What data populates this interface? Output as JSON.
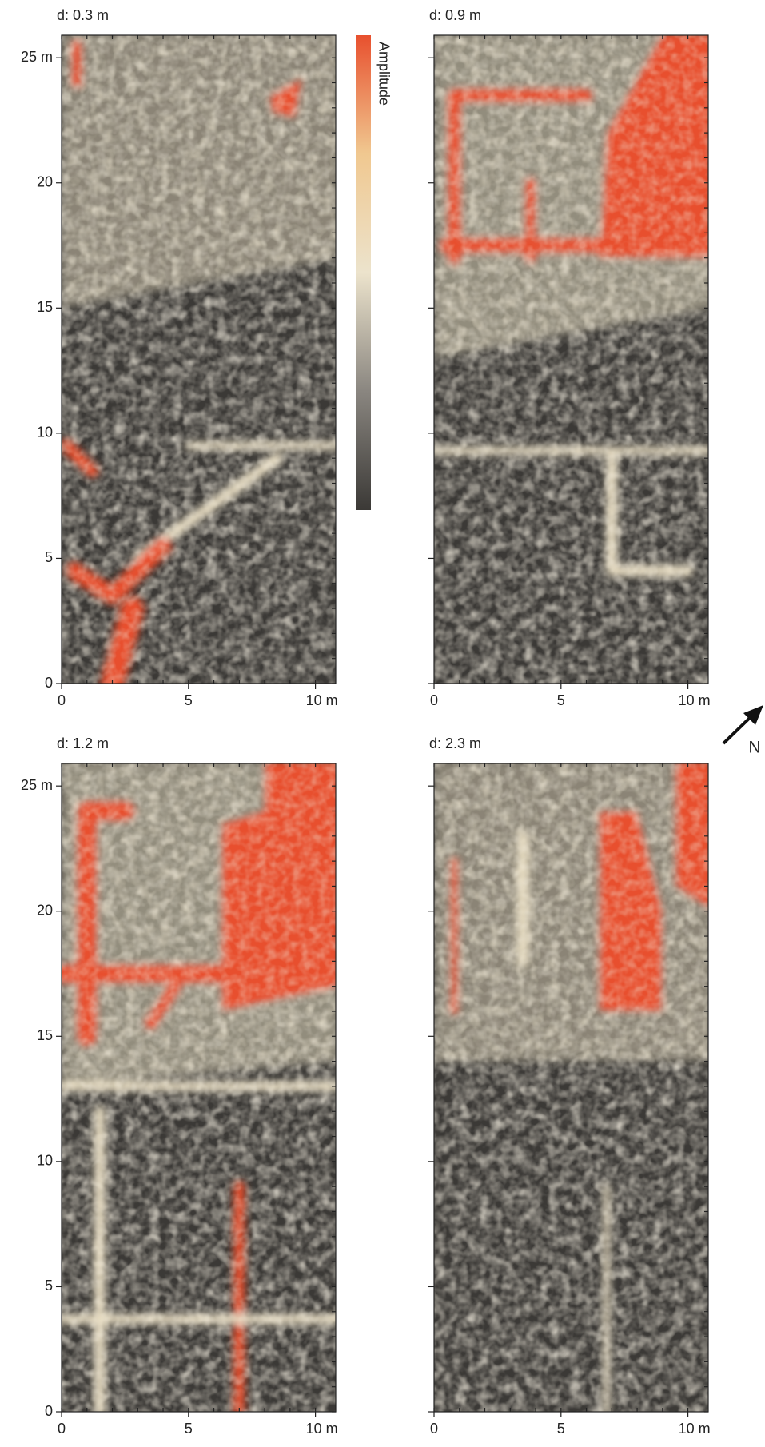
{
  "panels": [
    {
      "title": "d: 0.3 m",
      "show_y_labels": true
    },
    {
      "title": "d: 0.9 m",
      "show_y_labels": false
    },
    {
      "title": "d: 1.2 m",
      "show_y_labels": true
    },
    {
      "title": "d: 2.3 m",
      "show_y_labels": false
    }
  ],
  "x_axis": {
    "lim": [
      0,
      10.8
    ],
    "ticks": [
      0,
      5,
      {
        "value": 10,
        "label": "10 m"
      }
    ]
  },
  "y_axis": {
    "lim": [
      0,
      25.9
    ],
    "ticks": [
      0,
      5,
      10,
      15,
      20,
      {
        "value": 25,
        "label": "25 m"
      }
    ]
  },
  "colorbar": {
    "label": "Amplitude",
    "colors": [
      "#e8502e",
      "#f0c890",
      "#ece3cc",
      "#8a8680",
      "#3b3936"
    ]
  },
  "north_label": "N"
}
